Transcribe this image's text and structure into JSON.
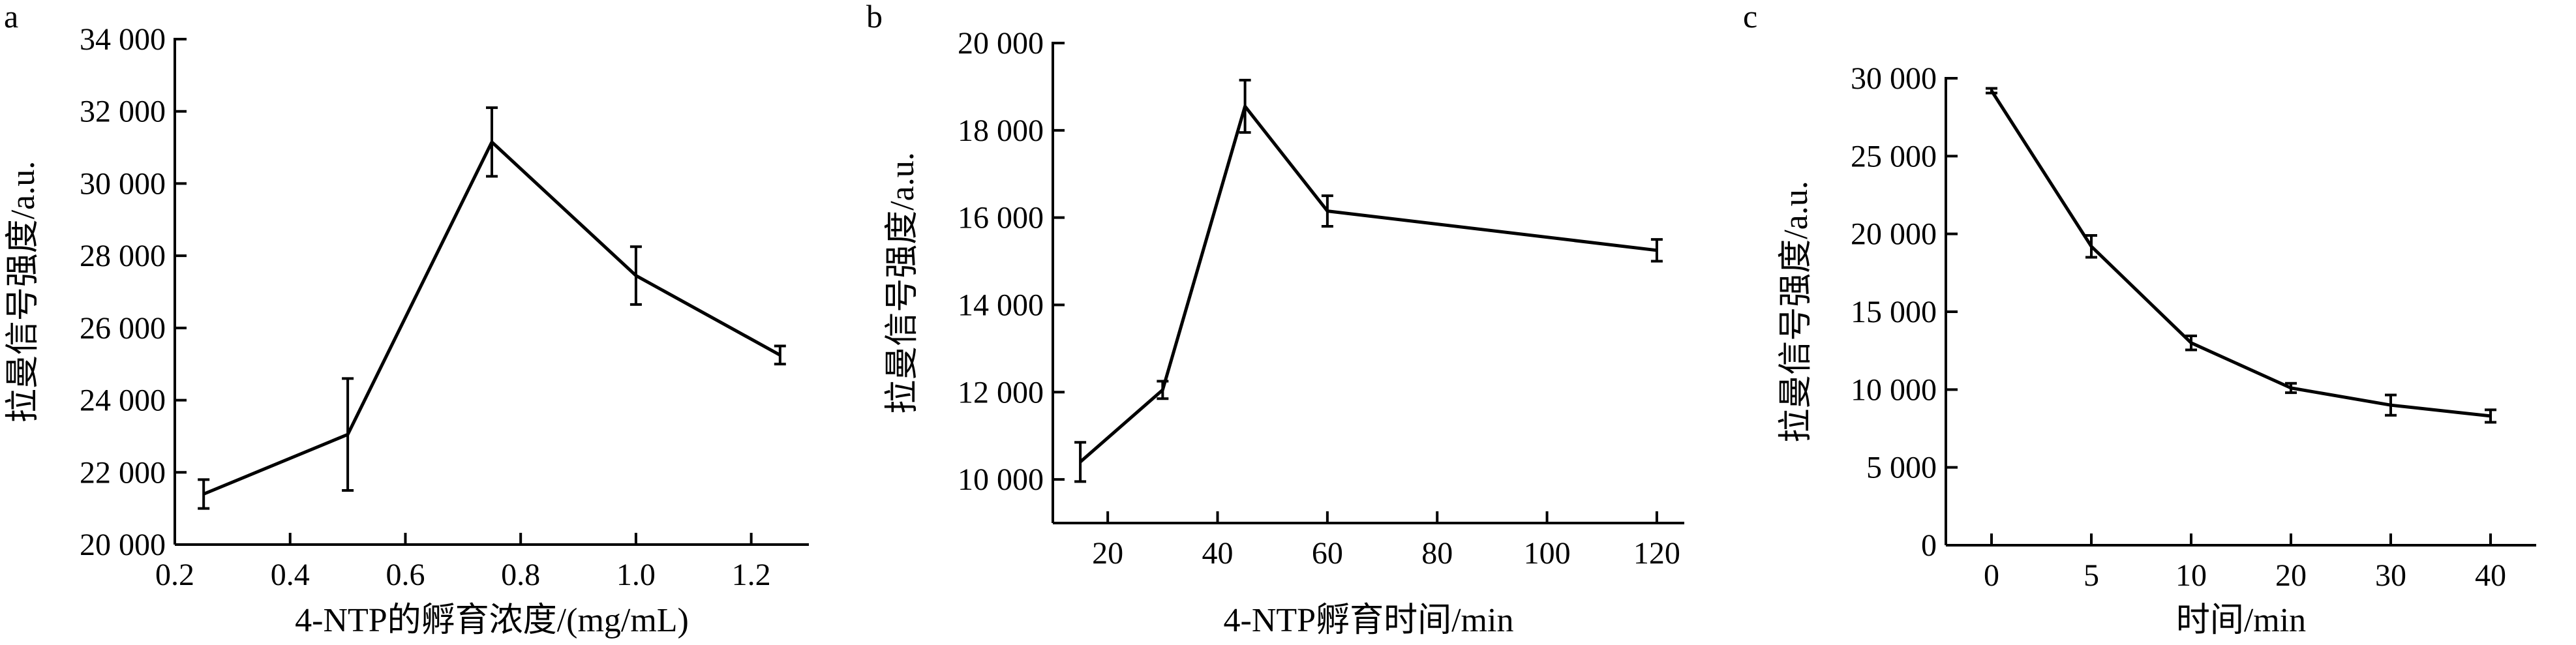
{
  "chart_data": [
    {
      "type": "line",
      "panel_label": "a",
      "xlabel": "4-NTP的孵育浓度/(mg/mL)",
      "ylabel": "拉曼信号强度/a.u.",
      "xlim": [
        0.2,
        1.3
      ],
      "ylim": [
        20000,
        34000
      ],
      "x_ticks": [
        0.2,
        0.4,
        0.6,
        0.8,
        1.0,
        1.2
      ],
      "x_tick_labels": [
        "0.2",
        "0.4",
        "0.6",
        "0.8",
        "1.0",
        "1.2"
      ],
      "y_ticks": [
        20000,
        22000,
        24000,
        26000,
        28000,
        30000,
        32000,
        34000
      ],
      "y_tick_labels": [
        "20 000",
        "22 000",
        "24 000",
        "26 000",
        "28 000",
        "30 000",
        "32 000",
        "34 000"
      ],
      "x": [
        0.25,
        0.5,
        0.75,
        1.0,
        1.25
      ],
      "y": [
        21400,
        23050,
        31150,
        27450,
        25250
      ],
      "error": [
        400,
        1550,
        950,
        800,
        250
      ]
    },
    {
      "type": "line",
      "panel_label": "b",
      "xlabel": "4-NTP孵育时间/min",
      "ylabel": "拉曼信号强度/a.u.",
      "xlim": [
        10,
        125
      ],
      "ylim": [
        9000,
        20000
      ],
      "x_ticks": [
        20,
        40,
        60,
        80,
        100,
        120
      ],
      "x_tick_labels": [
        "20",
        "40",
        "60",
        "80",
        "100",
        "120"
      ],
      "y_ticks": [
        10000,
        12000,
        14000,
        16000,
        18000,
        20000
      ],
      "y_tick_labels": [
        "10 000",
        "12 000",
        "14 000",
        "16 000",
        "18 000",
        "20 000"
      ],
      "x": [
        15,
        30,
        45,
        60,
        120
      ],
      "y": [
        10400,
        12050,
        18550,
        16150,
        15250
      ],
      "error": [
        450,
        200,
        600,
        350,
        250
      ]
    },
    {
      "type": "line",
      "panel_label": "c",
      "xlabel": "时间/min",
      "ylabel": "拉曼信号强度/a.u.",
      "ylim": [
        0,
        30000
      ],
      "categories": [
        "0",
        "5",
        "10",
        "20",
        "30",
        "40"
      ],
      "y_ticks": [
        0,
        5000,
        10000,
        15000,
        20000,
        25000,
        30000
      ],
      "y_tick_labels": [
        "0",
        "5 000",
        "10 000",
        "15 000",
        "20 000",
        "25 000",
        "30 000"
      ],
      "y": [
        29200,
        19200,
        13000,
        10100,
        9000,
        8300
      ],
      "error": [
        150,
        700,
        450,
        300,
        650,
        400
      ]
    }
  ]
}
